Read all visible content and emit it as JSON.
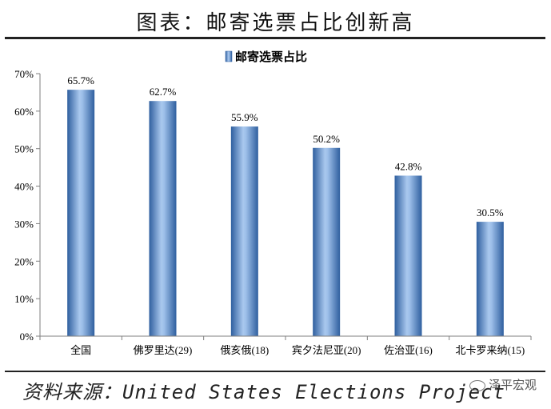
{
  "figure_title": "图表：邮寄选票占比创新高",
  "source_text": "资料来源：United States Elections Project",
  "watermark_text": "泽平宏观",
  "colors": {
    "bar": "#4f81c7",
    "bar_edge": "#ffffff",
    "axis": "#7f7f7f",
    "rule": "#222222"
  },
  "chart_data": {
    "type": "bar",
    "title": "",
    "xlabel": "",
    "ylabel": "",
    "legend": {
      "position": "top-center"
    },
    "series": [
      {
        "name": "邮寄选票占比",
        "values": [
          65.7,
          62.7,
          55.9,
          50.2,
          42.8,
          30.5
        ],
        "labels": [
          "65.7%",
          "62.7%",
          "55.9%",
          "50.2%",
          "42.8%",
          "30.5%"
        ]
      }
    ],
    "categories": [
      "全国",
      "佛罗里达(29)",
      "俄亥俄(18)",
      "宾夕法尼亚(20)",
      "佐治亚(16)",
      "北卡罗来纳(15)"
    ],
    "yticks": [
      "0%",
      "10%",
      "20%",
      "30%",
      "40%",
      "50%",
      "60%",
      "70%"
    ],
    "ylim": [
      0,
      70
    ],
    "grid": false
  }
}
